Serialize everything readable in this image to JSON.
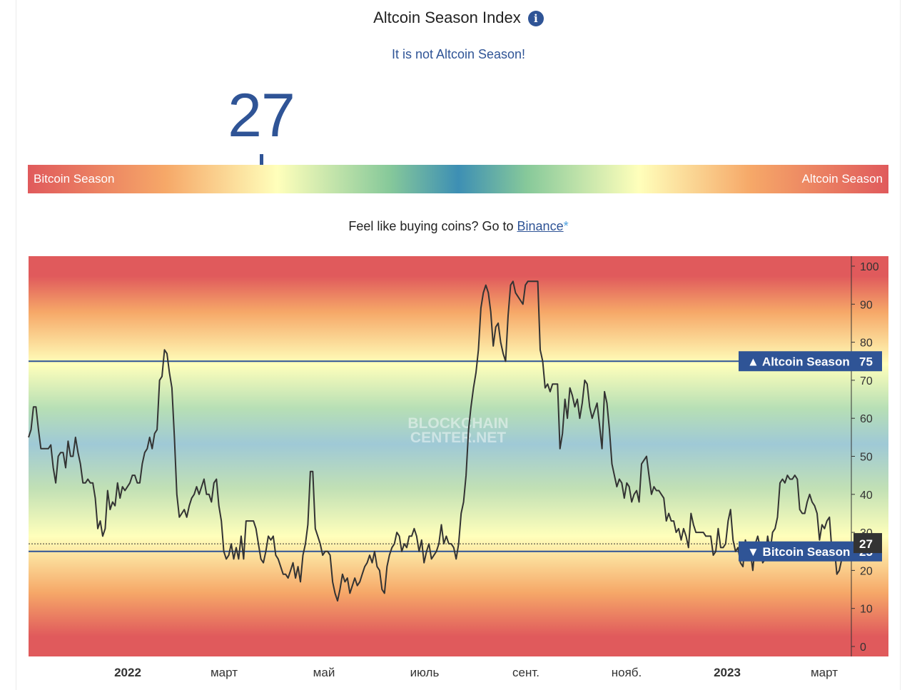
{
  "header": {
    "title": "Altcoin Season Index",
    "info_icon": "info-icon",
    "info_glyph": "i",
    "status": "It is not Altcoin Season!",
    "current_value": "27"
  },
  "gauge": {
    "left_label": "Bitcoin Season",
    "right_label": "Altcoin Season",
    "marker_value": 27,
    "colors": [
      "#e05a5c",
      "#f6a868",
      "#ffffbb",
      "#87c99a",
      "#3d8fb4"
    ]
  },
  "promo": {
    "text": "Feel like buying coins? Go to ",
    "link": "Binance",
    "star": "*"
  },
  "chart_data": {
    "type": "line",
    "title": "",
    "xlabel": "",
    "ylabel": "",
    "ylim": [
      0,
      100
    ],
    "y_ticks": [
      "0",
      "10",
      "20",
      "30",
      "40",
      "50",
      "60",
      "70",
      "80",
      "90",
      "100"
    ],
    "x_ticks": [
      "2022",
      "март",
      "май",
      "июль",
      "сент.",
      "нояб.",
      "2023",
      "март"
    ],
    "watermark": "BLOCKCHAINCENTER.NET",
    "thresholds": [
      {
        "name": "Altcoin Season",
        "value": 75,
        "label": "▲ Altcoin Season",
        "value_label": "75"
      },
      {
        "name": "Bitcoin Season",
        "value": 25,
        "label": "▼ Bitcoin Season",
        "value_label": "25"
      }
    ],
    "current_value": 27,
    "current_label": "27",
    "series": [
      {
        "name": "Altcoin Season Index",
        "color": "#333333",
        "values": [
          55,
          57,
          63,
          63,
          57,
          52,
          52,
          52,
          52,
          53,
          47,
          43,
          50,
          51,
          51,
          47,
          54,
          50,
          50,
          55,
          51,
          48,
          43,
          43,
          44,
          43,
          43,
          39,
          31,
          33,
          29,
          31,
          41,
          36,
          38,
          37,
          43,
          39,
          42,
          41,
          42,
          43,
          45,
          45,
          43,
          43,
          48,
          51,
          52,
          55,
          52,
          56,
          57,
          70,
          71,
          78,
          77,
          72,
          68,
          55,
          40,
          34,
          35,
          36,
          34,
          37,
          39,
          40,
          42,
          40,
          42,
          44,
          40,
          40,
          38,
          43,
          44,
          37,
          33,
          25,
          23,
          24,
          27,
          23,
          26,
          23,
          29,
          23,
          33,
          33,
          33,
          33,
          31,
          27,
          23,
          22,
          25,
          29,
          28,
          29,
          24,
          23,
          21,
          19,
          19,
          18,
          20,
          22,
          18,
          21,
          17,
          24,
          27,
          32,
          46,
          46,
          31,
          29,
          27,
          24,
          25,
          25,
          24,
          17,
          14,
          12,
          15,
          19,
          17,
          18,
          14,
          16,
          18,
          16,
          17,
          19,
          21,
          22,
          24,
          22,
          25,
          21,
          20,
          15,
          14,
          21,
          24,
          26,
          27,
          30,
          29,
          25,
          27,
          26,
          29,
          29,
          31,
          29,
          25,
          28,
          22,
          25,
          27,
          23,
          24,
          25,
          27,
          32,
          27,
          29,
          27,
          27,
          26,
          23,
          27,
          35,
          38,
          45,
          57,
          63,
          68,
          72,
          78,
          89,
          93,
          95,
          93,
          88,
          79,
          84,
          85,
          80,
          77,
          75,
          87,
          95,
          96,
          93,
          92,
          91,
          90,
          95,
          96,
          96,
          96,
          96,
          96,
          78,
          75,
          68,
          69,
          67,
          69,
          69,
          69,
          52,
          56,
          65,
          60,
          68,
          66,
          63,
          65,
          60,
          64,
          70,
          69,
          63,
          60,
          62,
          64,
          58,
          52,
          67,
          64,
          57,
          48,
          45,
          42,
          44,
          43,
          39,
          43,
          42,
          38,
          40,
          41,
          38,
          48,
          49,
          50,
          45,
          40,
          42,
          41,
          41,
          40,
          39,
          33,
          35,
          33,
          33,
          30,
          31,
          28,
          31,
          29,
          26,
          35,
          32,
          30,
          30,
          30,
          30,
          29,
          29,
          29,
          24,
          25,
          31,
          26,
          26,
          27,
          33,
          36,
          28,
          25,
          26,
          22,
          21,
          28,
          25,
          25,
          20,
          27,
          29,
          26,
          22,
          23,
          29,
          25,
          30,
          31,
          34,
          43,
          44,
          43,
          45,
          44,
          44,
          45,
          44,
          36,
          35,
          35,
          38,
          40,
          38,
          37,
          35,
          28,
          32,
          31,
          33,
          34,
          25,
          26,
          19,
          20,
          23,
          25,
          26,
          27
        ]
      }
    ]
  }
}
